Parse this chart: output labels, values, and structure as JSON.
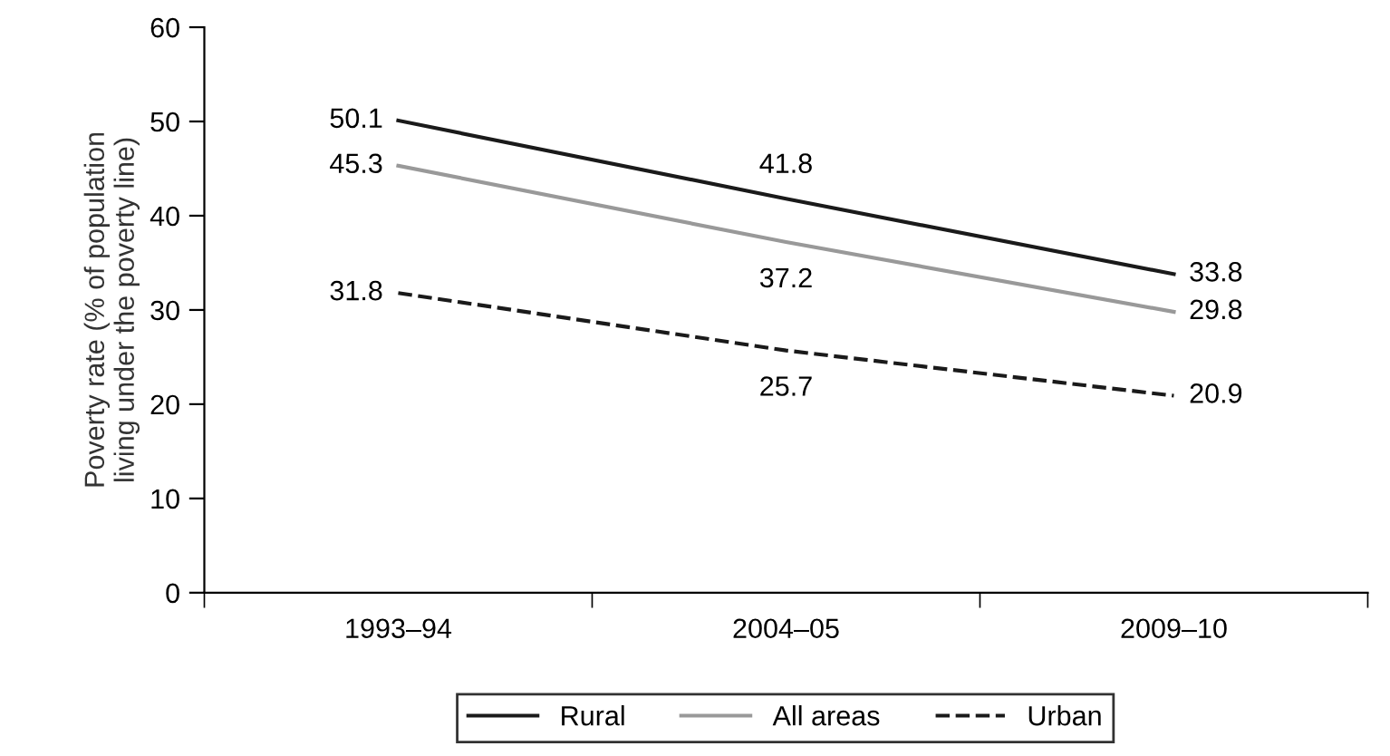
{
  "chart_data": {
    "type": "line",
    "ylabel": "Poverty rate (% of population\nliving under the poverty line)",
    "categories": [
      "1993–94",
      "2004–05",
      "2009–10"
    ],
    "series": [
      {
        "name": "Rural",
        "color": "#1a1a1a",
        "values": [
          50.1,
          41.8,
          33.8
        ],
        "line_style": "solid"
      },
      {
        "name": "All areas",
        "color": "#999999",
        "values": [
          45.3,
          37.2,
          29.8
        ],
        "line_style": "solid"
      },
      {
        "name": "Urban",
        "color": "#1a1a1a",
        "values": [
          31.8,
          25.7,
          20.9
        ],
        "line_style": "dashed"
      }
    ],
    "ylim": [
      0,
      60
    ],
    "yticks": [
      0,
      10,
      20,
      30,
      40,
      50,
      60
    ],
    "data_labels": true,
    "legend": "bottom",
    "grid": false,
    "marker": "none"
  }
}
